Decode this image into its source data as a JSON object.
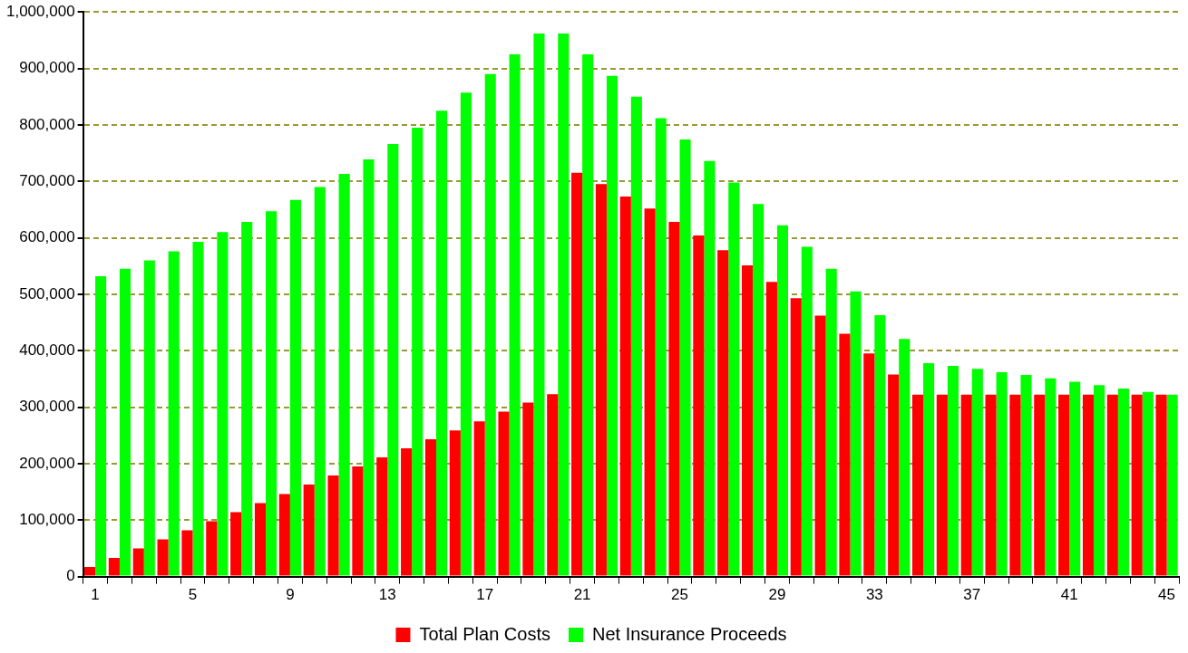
{
  "chart_data": {
    "type": "bar",
    "categories": [
      "1",
      null,
      null,
      null,
      "5",
      null,
      null,
      null,
      "9",
      null,
      null,
      null,
      "13",
      null,
      null,
      null,
      "17",
      null,
      null,
      null,
      "21",
      null,
      null,
      null,
      "25",
      null,
      null,
      null,
      "29",
      null,
      null,
      null,
      "33",
      null,
      null,
      null,
      "37",
      null,
      null,
      null,
      "41",
      null,
      null,
      null,
      "45"
    ],
    "series": [
      {
        "name": "Total Plan Costs",
        "color": "#ff0000",
        "values": [
          17000,
          33000,
          50000,
          66000,
          82000,
          98000,
          114000,
          130000,
          146000,
          163000,
          179000,
          195000,
          211000,
          227000,
          243000,
          259000,
          275000,
          292000,
          308000,
          323000,
          715000,
          695000,
          673000,
          652000,
          628000,
          604000,
          578000,
          551000,
          522000,
          493000,
          462000,
          430000,
          395000,
          358000,
          322000,
          322000,
          322000,
          322000,
          322000,
          322000,
          322000,
          322000,
          322000,
          322000,
          322000
        ]
      },
      {
        "name": "Net Insurance Proceeds",
        "color": "#00ff00",
        "values": [
          532000,
          545000,
          560000,
          576000,
          593000,
          610000,
          628000,
          647000,
          667000,
          690000,
          713000,
          739000,
          766000,
          795000,
          825000,
          857000,
          890000,
          925000,
          962000,
          962000,
          925000,
          887000,
          850000,
          812000,
          774000,
          736000,
          698000,
          660000,
          622000,
          584000,
          545000,
          505000,
          463000,
          421000,
          378000,
          373000,
          368000,
          362000,
          357000,
          351000,
          345000,
          339000,
          333000,
          327000,
          322000
        ]
      }
    ],
    "ylim": [
      0,
      1000000
    ],
    "yticks": [
      0,
      {
        "value": 100000,
        "label": "100,000"
      },
      {
        "value": 200000,
        "label": "200,000"
      },
      {
        "value": 300000,
        "label": "300,000"
      },
      {
        "value": 400000,
        "label": "400,000"
      },
      {
        "value": 500000,
        "label": "500,000"
      },
      {
        "value": 600000,
        "label": "600,000"
      },
      {
        "value": 700000,
        "label": "700,000"
      },
      {
        "value": 800000,
        "label": "800,000"
      },
      {
        "value": 900000,
        "label": "900,000"
      },
      {
        "value": 1000000,
        "label": "1,000,000"
      }
    ],
    "grid": "y",
    "legend": "bottom"
  }
}
